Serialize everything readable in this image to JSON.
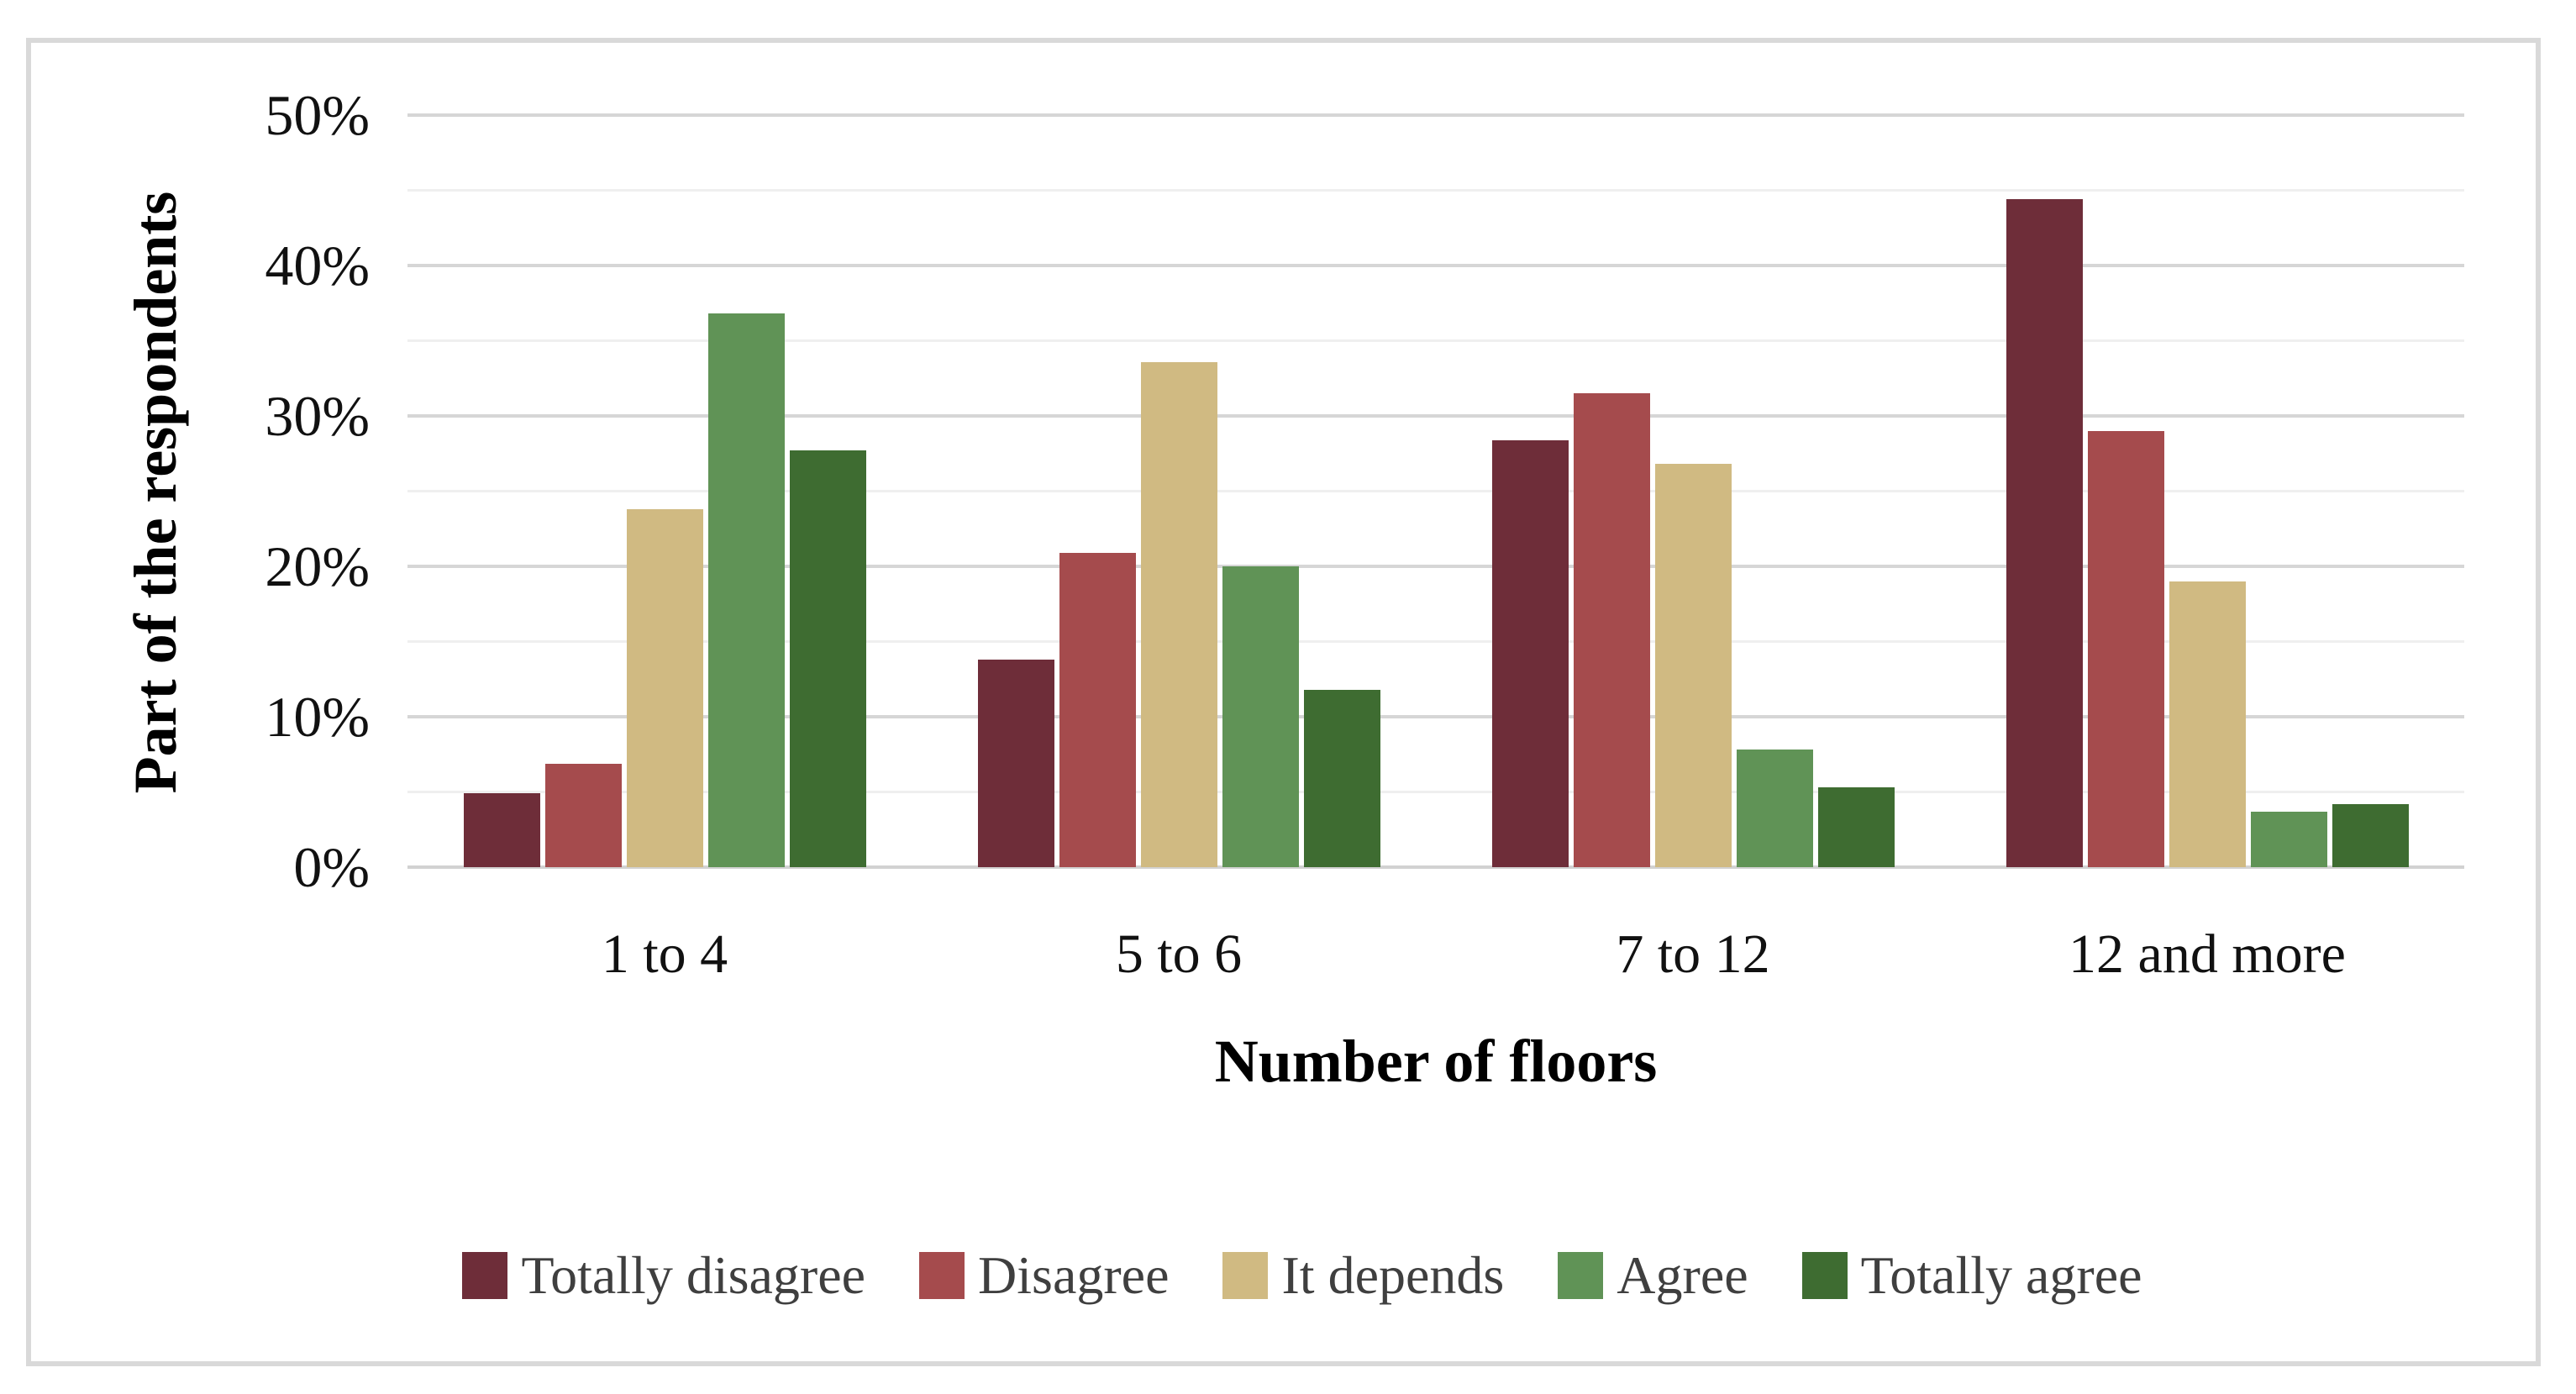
{
  "figure": {
    "background_color": "#ffffff",
    "frame_border_color": "#d9d9d9",
    "gridline_major_color": "#d6d6d6",
    "gridline_minor_color": "#efefef",
    "text_color": "#111111",
    "legend_text_color": "#3f3f3f"
  },
  "chart_data": {
    "type": "bar",
    "title": "",
    "xlabel": "Number of floors",
    "ylabel": "Part of the respondents",
    "categories": [
      "1 to 4",
      "5 to 6",
      "7 to 12",
      "12 and more"
    ],
    "series": [
      {
        "name": "Totally disagree",
        "color": "#6e2d39",
        "values": [
          4.9,
          13.8,
          28.4,
          44.4
        ]
      },
      {
        "name": "Disagree",
        "color": "#a54b4d",
        "values": [
          6.9,
          20.9,
          31.5,
          29.0
        ]
      },
      {
        "name": "It depends",
        "color": "#d0ba82",
        "values": [
          23.8,
          33.6,
          26.8,
          19.0
        ]
      },
      {
        "name": "Agree",
        "color": "#609356",
        "values": [
          36.8,
          20.0,
          7.8,
          3.7
        ]
      },
      {
        "name": "Totally agree",
        "color": "#3e6c31",
        "values": [
          27.7,
          11.8,
          5.3,
          4.2
        ]
      }
    ],
    "ylim": [
      0,
      50
    ],
    "ytick_major_step": 10,
    "ytick_minor_step": 5,
    "ytick_labels": [
      "0%",
      "10%",
      "20%",
      "30%",
      "40%",
      "50%"
    ],
    "grid": "horizontal",
    "legend_position": "bottom"
  }
}
